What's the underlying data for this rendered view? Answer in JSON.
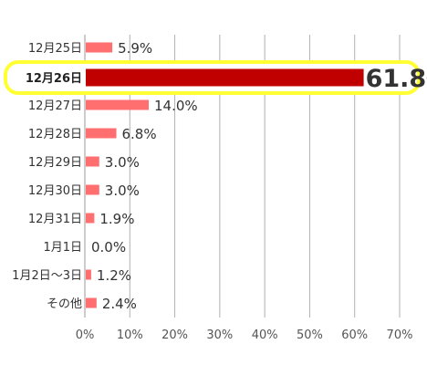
{
  "chart_data": {
    "type": "bar",
    "orientation": "horizontal",
    "categories": [
      "12月25日",
      "12月26日",
      "12月27日",
      "12月28日",
      "12月29日",
      "12月30日",
      "12月31日",
      "1月1日",
      "1月2日〜3日",
      "その他"
    ],
    "values": [
      5.9,
      61.8,
      14.0,
      6.8,
      3.0,
      3.0,
      1.9,
      0.0,
      1.2,
      2.4
    ],
    "value_labels": [
      "5.9%",
      "61.8",
      "14.0%",
      "6.8%",
      "3.0%",
      "3.0%",
      "1.9%",
      "0.0%",
      "1.2%",
      "2.4%"
    ],
    "highlight_index": 1,
    "highlight_suffix": "%",
    "xlim": [
      0,
      70
    ],
    "xticks": [
      "0%",
      "10%",
      "20%",
      "30%",
      "40%",
      "50%",
      "60%",
      "70%"
    ],
    "grid": true,
    "colors": {
      "bar": "#ff6f6f",
      "bar_highlight": "#c00000",
      "highlight_frame": "#ffff33",
      "grid": "#b0b0b0"
    }
  }
}
